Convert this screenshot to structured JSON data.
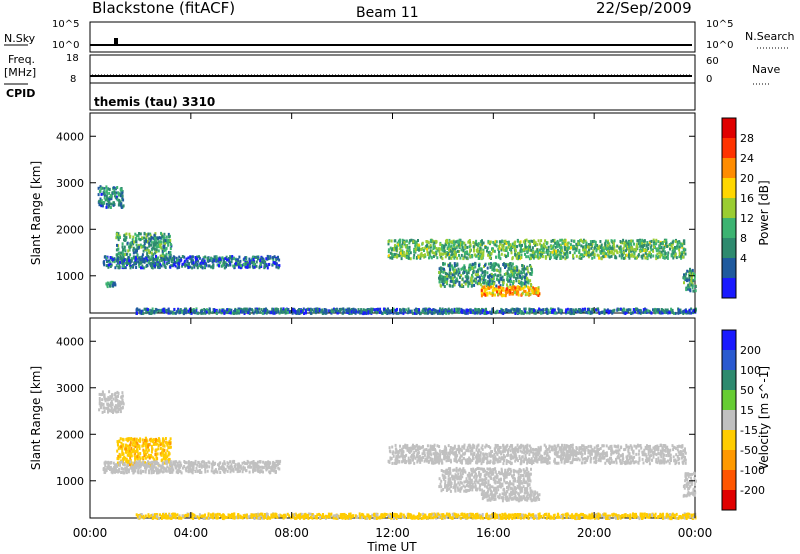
{
  "header": {
    "station": "Blackstone (fitACF)",
    "beam": "Beam 11",
    "date": "22/Sep/2009"
  },
  "params": {
    "nsky_label": "N.Sky",
    "nsky_ticks": [
      "10^5",
      "10^0"
    ],
    "nsearch_label": "N.Search",
    "nsearch_ticks": [
      "10^5",
      "10^0"
    ],
    "freq_label": "Freq.",
    "freq_unit": "[MHz]",
    "freq_ticks": [
      "18",
      "8"
    ],
    "nave_label": "Nave",
    "nave_ticks": [
      "60",
      "0"
    ],
    "cpid_label": "CPID",
    "cpid_value": "themis (tau) 3310"
  },
  "colors": {
    "power_scale": [
      "#1a1aff",
      "#1f5a9e",
      "#2e8a6e",
      "#3cb371",
      "#9acd32",
      "#ffd700",
      "#ff8c00",
      "#ff3300",
      "#e00000"
    ],
    "velocity_scale": [
      "#1a1aff",
      "#2a5ad0",
      "#2e8a6e",
      "#66cc33",
      "#c0c0c0",
      "#ffcc00",
      "#ff9900",
      "#ff5500",
      "#e00000"
    ]
  },
  "chart_data": [
    {
      "type": "heatmap",
      "panel": "power",
      "ylabel": "Slant Range [km]",
      "ylim": [
        200,
        4500
      ],
      "yticks": [
        "1000",
        "2000",
        "3000",
        "4000"
      ],
      "xlim_hours": [
        0,
        24
      ],
      "colorbar_label": "Power [dB]",
      "colorbar_ticks": [
        "4",
        "8",
        "12",
        "16",
        "20",
        "24",
        "28"
      ],
      "colorbar_range": [
        0,
        30
      ],
      "echo_regions": [
        {
          "t": [
            0.3,
            1.3
          ],
          "r": [
            2500,
            2950
          ],
          "value": 8
        },
        {
          "t": [
            1.0,
            3.2
          ],
          "r": [
            1350,
            1950
          ],
          "value": 10
        },
        {
          "t": [
            0.5,
            7.5
          ],
          "r": [
            1200,
            1450
          ],
          "value": 6
        },
        {
          "t": [
            0.6,
            1.0
          ],
          "r": [
            800,
            900
          ],
          "value": 8
        },
        {
          "t": [
            1.8,
            24.0
          ],
          "r": [
            220,
            320
          ],
          "value": 6
        },
        {
          "t": [
            11.8,
            23.6
          ],
          "r": [
            1400,
            1800
          ],
          "value": 12
        },
        {
          "t": [
            13.8,
            17.5
          ],
          "r": [
            800,
            1300
          ],
          "value": 10
        },
        {
          "t": [
            15.5,
            17.8
          ],
          "r": [
            600,
            800
          ],
          "value": 20
        },
        {
          "t": [
            23.5,
            24.0
          ],
          "r": [
            700,
            1200
          ],
          "value": 10
        }
      ]
    },
    {
      "type": "heatmap",
      "panel": "velocity",
      "ylabel": "Slant Range [km]",
      "ylim": [
        200,
        4500
      ],
      "yticks": [
        "1000",
        "2000",
        "3000",
        "4000"
      ],
      "xlim_hours": [
        0,
        24
      ],
      "xticks": [
        "00:00",
        "04:00",
        "08:00",
        "12:00",
        "16:00",
        "20:00",
        "00:00"
      ],
      "xlabel": "Time UT",
      "colorbar_label": "Velocity [m s^-1]",
      "colorbar_ticks": [
        "200",
        "100",
        "50",
        "15",
        "-15",
        "-50",
        "-100",
        "-200"
      ],
      "colorbar_range": [
        -250,
        250
      ],
      "echo_regions": [
        {
          "t": [
            0.3,
            1.3
          ],
          "r": [
            2500,
            2950
          ],
          "value": 0
        },
        {
          "t": [
            1.0,
            3.2
          ],
          "r": [
            1350,
            1950
          ],
          "value": -70
        },
        {
          "t": [
            0.5,
            7.5
          ],
          "r": [
            1200,
            1450
          ],
          "value": 0
        },
        {
          "t": [
            1.8,
            24.0
          ],
          "r": [
            220,
            320
          ],
          "value": -40
        },
        {
          "t": [
            11.8,
            23.6
          ],
          "r": [
            1400,
            1800
          ],
          "value": 0
        },
        {
          "t": [
            13.8,
            17.5
          ],
          "r": [
            800,
            1300
          ],
          "value": 0
        },
        {
          "t": [
            15.5,
            17.8
          ],
          "r": [
            600,
            800
          ],
          "value": 0
        },
        {
          "t": [
            23.5,
            24.0
          ],
          "r": [
            700,
            1200
          ],
          "value": 0
        }
      ]
    }
  ]
}
